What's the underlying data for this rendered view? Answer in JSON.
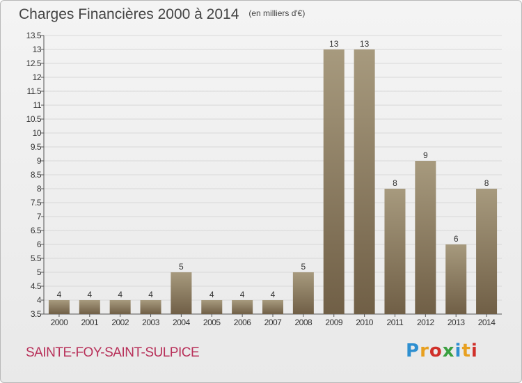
{
  "header": {
    "title": "Charges Financières 2000 à 2014",
    "subtitle": "(en milliers d'€)"
  },
  "footer": {
    "commune": "SAINTE-FOY-SAINT-SULPICE",
    "logo_text": "Proxiti"
  },
  "colors": {
    "bar_top": "#a79a7e",
    "bar_bottom": "#705f46",
    "grid": "#d8d8d8",
    "axis": "#555555",
    "title": "#444444",
    "commune": "#b8315a"
  },
  "chart_data": {
    "type": "bar",
    "title": "Charges Financières 2000 à 2014",
    "subtitle": "(en milliers d'€)",
    "categories": [
      "2000",
      "2001",
      "2002",
      "2003",
      "2004",
      "2005",
      "2006",
      "2007",
      "2008",
      "2009",
      "2010",
      "2011",
      "2012",
      "2013",
      "2014"
    ],
    "values": [
      4,
      4,
      4,
      4,
      5,
      4,
      4,
      4,
      5,
      13,
      13,
      8,
      9,
      6,
      8
    ],
    "ylim": [
      3.5,
      13.5
    ],
    "yticks": [
      3.5,
      4,
      4.5,
      5,
      5.5,
      6,
      6.5,
      7,
      7.5,
      8,
      8.5,
      9,
      9.5,
      10,
      10.5,
      11,
      11.5,
      12,
      12.5,
      13,
      13.5
    ],
    "ytick_labels": [
      "3.5",
      "4",
      "4.5",
      "5",
      "5.5",
      "6",
      "6.5",
      "7",
      "7.5",
      "8",
      "8.5",
      "9",
      "9.5",
      "10",
      "10.5",
      "11",
      "11.5",
      "12",
      "12.5",
      "13",
      "13.5"
    ],
    "grid": true,
    "legend": "none"
  }
}
